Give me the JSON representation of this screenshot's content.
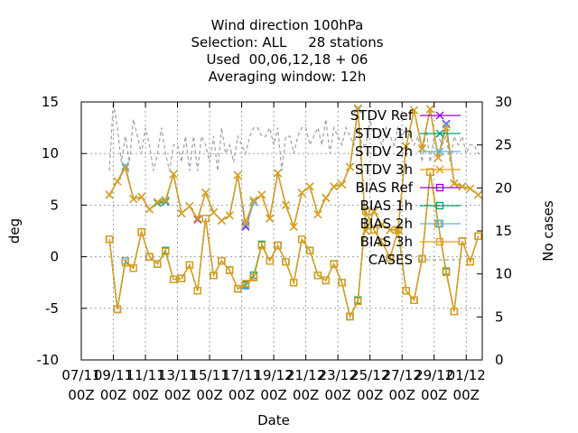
{
  "chart_data": {
    "type": "line",
    "title_lines": [
      "Wind direction 100hPa",
      "Selection: ALL     28 stations",
      "Used  00,06,12,18 + 06",
      "Averaging window: 12h"
    ],
    "xlabel": "Date",
    "ylabel": "deg",
    "y2label": "No cases",
    "x_unit": "days since 07/11 00Z",
    "xlim": [
      0,
      25
    ],
    "ylim": [
      -10,
      15
    ],
    "y2lim": [
      0,
      30
    ],
    "x_ticks": [
      {
        "x": 0,
        "l1": "07/11",
        "l2": "00Z"
      },
      {
        "x": 2,
        "l1": "09/11",
        "l2": "00Z"
      },
      {
        "x": 4,
        "l1": "11/11",
        "l2": "00Z"
      },
      {
        "x": 6,
        "l1": "13/11",
        "l2": "00Z"
      },
      {
        "x": 8,
        "l1": "15/11",
        "l2": "00Z"
      },
      {
        "x": 10,
        "l1": "17/11",
        "l2": "00Z"
      },
      {
        "x": 12,
        "l1": "19/12",
        "l2": "00Z"
      },
      {
        "x": 14,
        "l1": "21/12",
        "l2": "00Z"
      },
      {
        "x": 16,
        "l1": "23/12",
        "l2": "00Z"
      },
      {
        "x": 18,
        "l1": "25/12",
        "l2": "00Z"
      },
      {
        "x": 20,
        "l1": "27/12",
        "l2": "00Z"
      },
      {
        "x": 22,
        "l1": "29/12",
        "l2": "00Z"
      },
      {
        "x": 24,
        "l1": "01/12",
        "l2": "00Z"
      }
    ],
    "y_ticks": [
      -10,
      -5,
      0,
      5,
      10,
      15
    ],
    "y2_ticks": [
      0,
      5,
      10,
      15,
      20,
      25,
      30
    ],
    "grid": true,
    "legend_position": "top-right",
    "x": [
      1.75,
      2.25,
      2.75,
      3.25,
      3.75,
      4.25,
      4.75,
      5.25,
      5.75,
      6.25,
      6.75,
      7.25,
      7.75,
      8.25,
      8.75,
      9.25,
      9.75,
      10.25,
      10.75,
      11.25,
      11.75,
      12.25,
      12.75,
      13.25,
      13.75,
      14.25,
      14.75,
      15.25,
      15.75,
      16.25,
      16.75,
      17.25,
      17.75,
      18.25,
      18.75,
      19.25,
      19.75,
      20.25,
      20.75,
      21.25,
      21.75,
      22.25,
      22.75,
      23.25,
      23.75,
      24.25,
      24.75
    ],
    "series": [
      {
        "name": "STDV Ref",
        "color": "#9400d3",
        "marker": "x",
        "values": [
          6,
          7.3,
          8.6,
          5.6,
          5.8,
          4.6,
          5.3,
          5.4,
          8,
          4.2,
          4.9,
          3.6,
          6.2,
          4.3,
          3.5,
          4,
          7.9,
          2.9,
          5.3,
          6,
          3.7,
          8.1,
          5,
          2.9,
          6.2,
          6.8,
          4.1,
          5.7,
          6.8,
          7,
          8.7,
          14.3,
          2.5,
          4.4,
          3.1,
          2.6,
          2.6,
          10.7,
          14.2,
          10.5,
          14.3,
          9.6,
          12.9,
          7.1,
          6.8,
          6.6,
          6
        ]
      },
      {
        "name": "STDV 1h",
        "color": "#009e73",
        "marker": "x",
        "values": [
          6,
          7.3,
          8.8,
          5.6,
          5.8,
          4.6,
          5.2,
          5.3,
          8,
          4.2,
          4.9,
          3.7,
          6.2,
          4.3,
          3.5,
          4,
          7.9,
          3.1,
          5.3,
          6,
          3.7,
          8.1,
          5,
          2.9,
          6.2,
          6.8,
          4.1,
          5.7,
          6.8,
          7,
          8.7,
          14.3,
          2.5,
          4.4,
          3.1,
          2.6,
          2.6,
          10.7,
          14.2,
          10.5,
          14.3,
          9.6,
          12.8,
          7.1,
          6.8,
          6.6,
          6
        ]
      },
      {
        "name": "STDV 2h",
        "color": "#56b4e9",
        "marker": "x",
        "values": [
          6,
          7.3,
          8.8,
          5.6,
          5.8,
          4.6,
          5.3,
          5.4,
          8,
          4.2,
          4.9,
          3.7,
          6.2,
          4.3,
          3.5,
          4,
          7.9,
          3.1,
          5.3,
          6,
          3.7,
          8.1,
          5,
          2.9,
          6.2,
          6.8,
          4.1,
          5.7,
          6.8,
          7,
          8.7,
          14.3,
          2.5,
          4.4,
          3.1,
          2.6,
          2.6,
          10.7,
          14.2,
          10.5,
          14.3,
          9.6,
          12.8,
          7.1,
          6.8,
          6.6,
          6
        ]
      },
      {
        "name": "STDV 3h",
        "color": "#e69f00",
        "marker": "x",
        "values": [
          6,
          7.3,
          8.6,
          5.6,
          5.8,
          4.6,
          5.3,
          5.5,
          8,
          4.2,
          4.9,
          3.7,
          6.2,
          4.3,
          3.5,
          4,
          7.9,
          3.3,
          5.5,
          6,
          3.7,
          8.1,
          5,
          2.9,
          6.2,
          6.8,
          4.1,
          5.7,
          6.8,
          7,
          8.7,
          14.4,
          2.5,
          4.4,
          3.1,
          2.6,
          2.6,
          10.7,
          14.2,
          10.5,
          14.3,
          9.6,
          12.5,
          7.1,
          6.8,
          6.6,
          6
        ]
      },
      {
        "name": "BIAS Ref",
        "color": "#9400d3",
        "marker": "square",
        "values": [
          1.7,
          -5.1,
          -0.4,
          -1.1,
          2.4,
          0,
          -0.7,
          0.5,
          -2.2,
          -2.1,
          -0.8,
          -3.3,
          3.7,
          -1.8,
          -0.4,
          -1.3,
          -3.1,
          -2.8,
          -2,
          1.1,
          -0.4,
          1.1,
          -0.5,
          -2.5,
          1.7,
          0.6,
          -1.8,
          -2.3,
          -0.7,
          -2.5,
          -5.8,
          -4.3,
          4.4,
          2.6,
          1.4,
          -0.1,
          2.6,
          -3.3,
          -4.2,
          -0.2,
          8.2,
          3.2,
          -1.5,
          -5.3,
          1.5,
          -0.5,
          2
        ]
      },
      {
        "name": "BIAS 1h",
        "color": "#009e73",
        "marker": "square",
        "values": [
          1.7,
          -5.1,
          -0.4,
          -1.1,
          2.4,
          0,
          -0.7,
          0.6,
          -2.2,
          -2.1,
          -0.8,
          -3.3,
          3.7,
          -1.8,
          -0.4,
          -1.3,
          -3.1,
          -2.7,
          -1.8,
          1.2,
          -0.4,
          1.1,
          -0.5,
          -2.5,
          1.7,
          0.6,
          -1.8,
          -2.3,
          -0.7,
          -2.5,
          -5.8,
          -4.2,
          4.4,
          2.6,
          1.4,
          -0.1,
          2.6,
          -3.3,
          -4.2,
          -0.2,
          8.2,
          3.2,
          -1.4,
          -5.3,
          1.5,
          -0.5,
          2
        ]
      },
      {
        "name": "BIAS 2h",
        "color": "#56b4e9",
        "marker": "square",
        "values": [
          1.7,
          -5.1,
          -0.4,
          -1.1,
          2.4,
          0,
          -0.7,
          0.5,
          -2.2,
          -2.1,
          -0.8,
          -3.3,
          3.7,
          -1.8,
          -0.4,
          -1.3,
          -3.1,
          -2.8,
          -2,
          1.1,
          -0.4,
          1.1,
          -0.5,
          -2.5,
          1.7,
          0.6,
          -1.8,
          -2.3,
          -0.7,
          -2.5,
          -5.8,
          -4.3,
          4.4,
          2.6,
          1.4,
          -0.1,
          2.6,
          -3.3,
          -4.2,
          -0.2,
          8.2,
          3.2,
          -1.5,
          -5.3,
          1.5,
          -0.5,
          2
        ]
      },
      {
        "name": "BIAS 3h",
        "color": "#e69f00",
        "marker": "square",
        "values": [
          1.7,
          -5.1,
          -0.6,
          -1.1,
          2.4,
          0,
          -0.7,
          0.5,
          -2.2,
          -2.1,
          -0.8,
          -3.3,
          3.7,
          -1.8,
          -0.4,
          -1.3,
          -3.1,
          -2.6,
          -2,
          1.1,
          -0.4,
          1.1,
          -0.5,
          -2.5,
          1.7,
          0.6,
          -1.8,
          -2.3,
          -0.7,
          -2.5,
          -5.8,
          -4.3,
          4.4,
          2.6,
          1.4,
          -0.1,
          2.6,
          -3.3,
          -4.2,
          -0.2,
          8.2,
          3.2,
          -1.5,
          -5.3,
          1.5,
          -0.5,
          2
        ]
      },
      {
        "name": "CASES",
        "color": "#a0a0a0",
        "dashed": true,
        "axis": "y2",
        "x": [
          1.75,
          2,
          2.25,
          2.5,
          2.75,
          3,
          3.25,
          3.5,
          3.75,
          4,
          4.25,
          4.5,
          4.75,
          5,
          5.25,
          5.5,
          5.75,
          6,
          6.25,
          6.5,
          6.75,
          7,
          7.25,
          7.5,
          7.75,
          8,
          8.25,
          8.5,
          8.75,
          9,
          9.25,
          9.5,
          9.75,
          10,
          10.25,
          10.5,
          10.75,
          11,
          11.25,
          11.5,
          11.75,
          12,
          12.25,
          12.5,
          12.75,
          13,
          13.25,
          13.5,
          13.75,
          14,
          14.25,
          14.5,
          14.75,
          15,
          15.25,
          15.5,
          15.75,
          16,
          16.25,
          16.5,
          16.75,
          17,
          17.25,
          17.5,
          17.75,
          18,
          18.25,
          18.5,
          18.75,
          19,
          19.25,
          19.5,
          19.75,
          20,
          20.25,
          20.5,
          20.75,
          21,
          21.25,
          21.5,
          21.75,
          22,
          22.25,
          22.5,
          22.75,
          23,
          23.25,
          23.5,
          23.75,
          24,
          24.25,
          24.5,
          24.75,
          25
        ],
        "values": [
          22,
          30,
          27,
          23,
          26,
          23,
          28,
          26,
          24,
          27,
          25,
          22,
          24,
          27,
          24,
          22,
          25,
          25,
          23,
          26,
          22,
          26,
          22,
          26,
          25,
          23,
          26,
          22,
          27,
          24,
          25,
          23,
          26,
          25,
          24,
          26,
          27,
          27,
          26,
          26,
          27,
          25,
          27,
          22,
          26,
          26,
          24,
          26,
          27,
          27,
          25,
          26,
          27,
          25,
          28,
          24,
          27,
          26,
          25,
          27,
          26,
          25,
          27,
          25,
          25,
          28,
          26,
          26,
          25,
          27,
          26,
          25,
          27,
          26,
          27,
          26,
          25,
          26,
          23,
          27,
          23,
          26,
          26,
          25,
          26,
          23,
          26,
          25,
          26,
          24,
          25,
          25,
          24,
          24
        ]
      }
    ]
  }
}
